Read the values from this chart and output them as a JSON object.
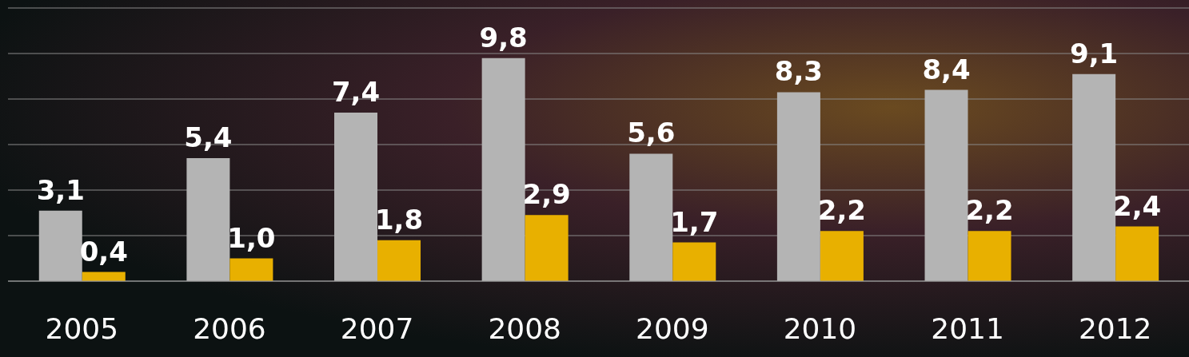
{
  "chart_data": {
    "type": "bar",
    "categories": [
      "2005",
      "2006",
      "2007",
      "2008",
      "2009",
      "2010",
      "2011",
      "2012"
    ],
    "series": [
      {
        "color": "#b4b4b4",
        "values": [
          3.1,
          5.4,
          7.4,
          9.8,
          5.6,
          8.3,
          8.4,
          9.1
        ],
        "value_labels": [
          "3,1",
          "5,4",
          "7,4",
          "9,8",
          "5,6",
          "8,3",
          "8,4",
          "9,1"
        ]
      },
      {
        "color": "#e8b000",
        "values": [
          0.4,
          1.0,
          1.8,
          2.9,
          1.7,
          2.2,
          2.2,
          2.4
        ],
        "value_labels": [
          "0,4",
          "1,0",
          "1,8",
          "2,9",
          "1,7",
          "2,2",
          "2,2",
          "2,4"
        ]
      }
    ],
    "grid": "y",
    "tick_labels": "x"
  }
}
